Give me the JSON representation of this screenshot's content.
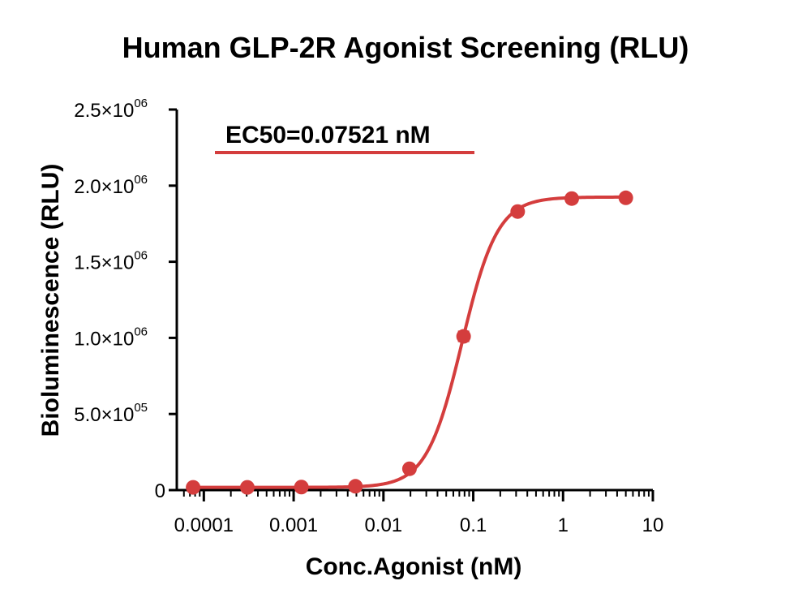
{
  "chart_data": {
    "type": "scatter",
    "title": "Human GLP-2R Agonist Screening (RLU)",
    "xlabel": "Conc.Agonist (nM)",
    "ylabel": "Bioluminescence (RLU)",
    "x_scale": "log",
    "xlim": [
      5e-05,
      10
    ],
    "ylim": [
      0,
      2500000
    ],
    "x_tick_values": [
      0.0001,
      0.001,
      0.01,
      0.1,
      1,
      10
    ],
    "x_tick_labels": [
      "0.0001",
      "0.001",
      "0.01",
      "0.1",
      "1",
      "10"
    ],
    "y_ticks": [
      {
        "value": 0,
        "mantissa": "0",
        "exponent": ""
      },
      {
        "value": 500000,
        "mantissa": "5.0×10",
        "exponent": "05"
      },
      {
        "value": 1000000,
        "mantissa": "1.0×10",
        "exponent": "06"
      },
      {
        "value": 1500000,
        "mantissa": "1.5×10",
        "exponent": "06"
      },
      {
        "value": 2000000,
        "mantissa": "2.0×10",
        "exponent": "06"
      },
      {
        "value": 2500000,
        "mantissa": "2.5×10",
        "exponent": "06"
      }
    ],
    "series": [
      {
        "color": "#d43d3d",
        "x": [
          7.6e-05,
          0.000305,
          0.00122,
          0.00488,
          0.0195,
          0.0781,
          0.3125,
          1.25,
          5.0
        ],
        "y": [
          18000,
          18000,
          20000,
          25000,
          140000,
          1010000,
          1830000,
          1915000,
          1920000
        ],
        "error": [
          0,
          0,
          0,
          0,
          0,
          30000,
          0,
          0,
          0
        ]
      }
    ],
    "fit": {
      "bottom": 18000,
      "top": 1925000,
      "ec50": 0.07521,
      "hill": 2.2
    },
    "annotation": "EC50=0.07521 nM",
    "grid": false,
    "legend": "none"
  }
}
